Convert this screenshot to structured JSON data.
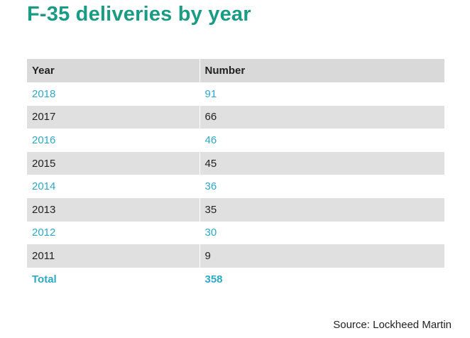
{
  "chart_data": {
    "type": "table",
    "title": "F-35 deliveries by year",
    "columns": [
      "Year",
      "Number"
    ],
    "rows": [
      {
        "year": "2018",
        "number": "91"
      },
      {
        "year": "2017",
        "number": "66"
      },
      {
        "year": "2016",
        "number": "46"
      },
      {
        "year": "2015",
        "number": "45"
      },
      {
        "year": "2014",
        "number": "36"
      },
      {
        "year": "2013",
        "number": "35"
      },
      {
        "year": "2012",
        "number": "30"
      },
      {
        "year": "2011",
        "number": "9"
      }
    ],
    "total": {
      "label": "Total",
      "number": "358"
    },
    "source": "Source: Lockheed Martin",
    "colors": {
      "title": "#1a9b84",
      "accent_text": "#2ca9c6",
      "header_bg": "#d9d9d9",
      "stripe_bg": "#e0e0e0"
    }
  }
}
